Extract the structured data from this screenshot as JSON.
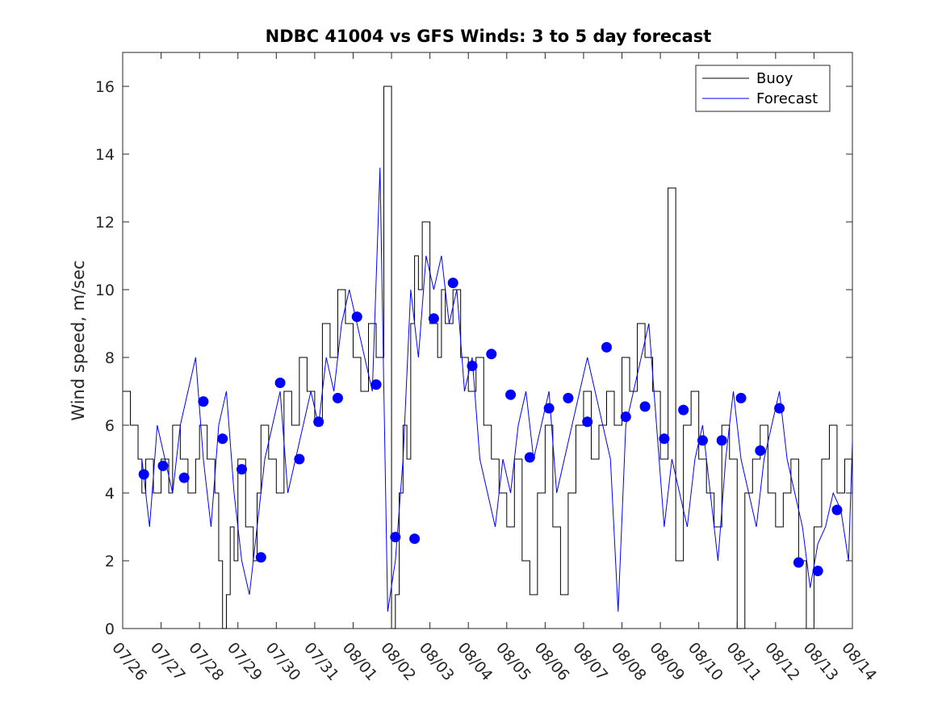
{
  "chart_data": {
    "type": "line",
    "title": "NDBC 41004 vs GFS Winds: 3 to 5 day forecast",
    "xlabel": "",
    "ylabel": "Wind speed, m/sec",
    "xlim": [
      "07/26",
      "08/14"
    ],
    "ylim": [
      0,
      17
    ],
    "yticks": [
      0,
      2,
      4,
      6,
      8,
      10,
      12,
      14,
      16
    ],
    "xticks": [
      "07/26",
      "07/27",
      "07/28",
      "07/29",
      "07/30",
      "07/31",
      "08/01",
      "08/02",
      "08/03",
      "08/04",
      "08/05",
      "08/06",
      "08/07",
      "08/08",
      "08/09",
      "08/10",
      "08/11",
      "08/12",
      "08/13",
      "08/14"
    ],
    "grid": false,
    "legend": {
      "placement": "top-right",
      "entries": [
        "Buoy",
        "Forecast"
      ]
    },
    "colors": {
      "buoy": "#000000",
      "forecast": "#0000ff",
      "markers": "#0000ff"
    },
    "series": [
      {
        "name": "Buoy",
        "color": "#000000",
        "x_days": [
          0,
          0.2,
          0.4,
          0.5,
          0.6,
          0.8,
          1.0,
          1.2,
          1.3,
          1.5,
          1.7,
          1.9,
          2.0,
          2.2,
          2.4,
          2.5,
          2.6,
          2.7,
          2.8,
          2.9,
          3.0,
          3.2,
          3.4,
          3.5,
          3.6,
          3.8,
          4.0,
          4.2,
          4.4,
          4.6,
          4.8,
          5.0,
          5.2,
          5.4,
          5.6,
          5.8,
          6.0,
          6.2,
          6.4,
          6.6,
          6.8,
          7.0,
          7.1,
          7.2,
          7.3,
          7.4,
          7.5,
          7.6,
          7.7,
          7.8,
          8.0,
          8.2,
          8.3,
          8.4,
          8.6,
          8.8,
          9.0,
          9.2,
          9.4,
          9.6,
          9.8,
          10.0,
          10.2,
          10.4,
          10.6,
          10.8,
          11.0,
          11.2,
          11.4,
          11.6,
          11.8,
          12.0,
          12.2,
          12.4,
          12.6,
          12.8,
          13.0,
          13.2,
          13.4,
          13.6,
          13.8,
          14.0,
          14.2,
          14.4,
          14.6,
          14.8,
          15.0,
          15.2,
          15.4,
          15.6,
          15.8,
          16.0,
          16.2,
          16.4,
          16.6,
          16.8,
          17.0,
          17.2,
          17.4,
          17.6,
          17.8,
          18.0,
          18.2,
          18.4,
          18.6,
          18.8,
          19.0
        ],
        "values": [
          7,
          6,
          5,
          4,
          5,
          4,
          5,
          4,
          6,
          5,
          4,
          5,
          6,
          5,
          4,
          2,
          0,
          1,
          3,
          2,
          5,
          3,
          2,
          4,
          6,
          5,
          4,
          7,
          6,
          8,
          7,
          6,
          9,
          8,
          10,
          9,
          8,
          7,
          9,
          8,
          16,
          0,
          1,
          4,
          6,
          5,
          9,
          11,
          10,
          12,
          9,
          8,
          10,
          9,
          10,
          8,
          7,
          8,
          6,
          5,
          4,
          3,
          5,
          2,
          1,
          4,
          6,
          3,
          1,
          4,
          6,
          7,
          5,
          6,
          7,
          6,
          8,
          7,
          9,
          8,
          7,
          5,
          13,
          2,
          6,
          7,
          5,
          4,
          3,
          6,
          5,
          0,
          4,
          5,
          6,
          4,
          3,
          4,
          5,
          2,
          0,
          3,
          5,
          6,
          4,
          5,
          4
        ]
      },
      {
        "name": "Forecast",
        "color": "#0000ff",
        "x_days": [
          0.5,
          0.7,
          0.9,
          1.1,
          1.3,
          1.5,
          1.7,
          1.9,
          2.1,
          2.3,
          2.5,
          2.7,
          2.9,
          3.1,
          3.3,
          3.5,
          3.7,
          3.9,
          4.1,
          4.3,
          4.5,
          4.7,
          4.9,
          5.1,
          5.3,
          5.5,
          5.7,
          5.9,
          6.1,
          6.3,
          6.5,
          6.7,
          6.9,
          7.1,
          7.3,
          7.5,
          7.7,
          7.9,
          8.1,
          8.3,
          8.5,
          8.7,
          8.9,
          9.1,
          9.3,
          9.5,
          9.7,
          9.9,
          10.1,
          10.3,
          10.5,
          10.7,
          10.9,
          11.1,
          11.3,
          11.5,
          11.7,
          11.9,
          12.1,
          12.3,
          12.5,
          12.7,
          12.9,
          13.1,
          13.3,
          13.5,
          13.7,
          13.9,
          14.1,
          14.3,
          14.5,
          14.7,
          14.9,
          15.1,
          15.3,
          15.5,
          15.7,
          15.9,
          16.1,
          16.3,
          16.5,
          16.7,
          16.9,
          17.1,
          17.3,
          17.5,
          17.7,
          17.9,
          18.1,
          18.3,
          18.5,
          18.7,
          18.9,
          19.0
        ],
        "values": [
          5,
          3,
          6,
          5,
          4,
          6,
          7,
          8,
          5,
          3,
          6,
          7,
          4,
          2,
          1,
          3,
          5,
          6,
          7,
          4,
          5,
          6,
          7,
          6,
          8,
          7,
          9,
          10,
          9,
          8,
          7,
          13.6,
          0.5,
          2,
          5,
          10,
          8,
          11,
          10,
          11,
          9,
          10,
          7,
          8,
          5,
          4,
          3,
          5,
          4,
          6,
          7,
          5,
          6,
          7,
          4,
          5,
          6,
          7,
          8,
          7,
          6,
          5,
          0.5,
          6,
          7,
          8,
          9,
          6,
          3,
          5,
          4,
          3,
          5,
          6,
          4,
          2,
          5,
          7,
          5,
          4,
          3,
          5,
          6,
          7,
          5,
          4,
          3,
          1.2,
          2.5,
          3,
          4,
          3.5,
          2,
          5.5
        ]
      }
    ],
    "markers": {
      "name": "Forecast points",
      "color": "#0000ff",
      "x_days": [
        0.55,
        1.05,
        1.6,
        2.1,
        2.6,
        3.1,
        3.6,
        4.1,
        4.6,
        5.1,
        5.6,
        6.1,
        6.6,
        7.1,
        7.6,
        8.1,
        8.6,
        9.1,
        9.6,
        10.1,
        10.6,
        11.1,
        11.6,
        12.1,
        12.6,
        13.1,
        13.6,
        14.1,
        14.6,
        15.1,
        15.6,
        16.1,
        16.6,
        17.1,
        17.6,
        18.1,
        18.6
      ],
      "values": [
        4.55,
        4.8,
        4.45,
        6.7,
        5.6,
        4.7,
        2.1,
        7.25,
        5.0,
        6.1,
        6.8,
        9.2,
        7.2,
        2.7,
        2.65,
        9.15,
        10.2,
        7.75,
        8.1,
        6.9,
        5.05,
        6.5,
        6.8,
        6.1,
        8.3,
        6.25,
        6.55,
        5.6,
        6.45,
        5.55,
        5.55,
        6.8,
        5.25,
        6.5,
        1.95,
        1.7,
        3.5
      ]
    }
  }
}
